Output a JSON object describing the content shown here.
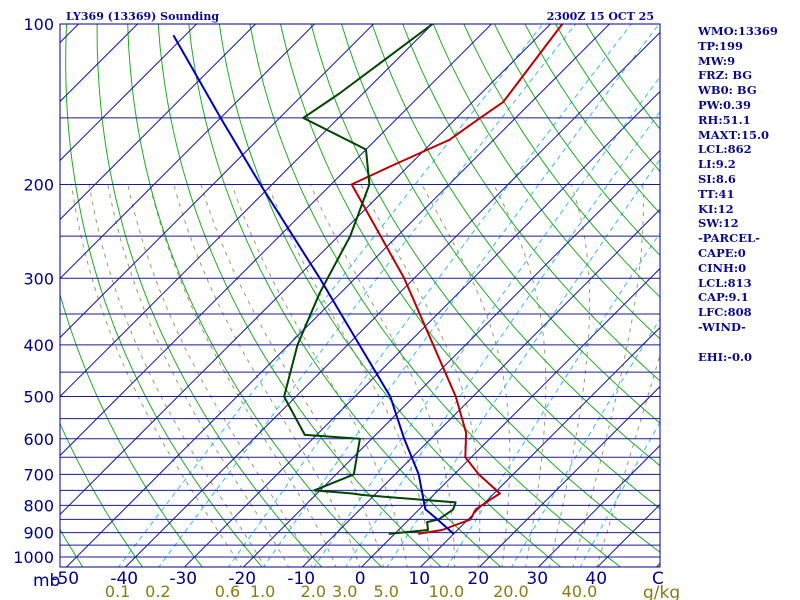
{
  "header": {
    "left": "LY369 (13369) Sounding",
    "right": "2300Z 15 OCT 25"
  },
  "indices": [
    "WMO:13369",
    "TP:199",
    "MW:9",
    "FRZ: BG",
    "WB0: BG",
    "PW:0.39",
    "RH:51.1",
    "MAXT:15.0",
    "LCL:862",
    "LI:9.2",
    "SI:8.6",
    "TT:41",
    "KI:12",
    "SW:12",
    "-PARCEL-",
    "CAPE:0",
    "CINH:0",
    "LCL:813",
    "CAP:9.1",
    "LFC:808",
    "-WIND-",
    "",
    "EHI:-0.0"
  ],
  "colors": {
    "frame": "#00008b",
    "isobar": "#1a1a9a",
    "isotherm": "#1a1a9a",
    "dry_adiabat": "#22aa22",
    "moist_adiabat": "#9a9a6a",
    "mixing_ratio": "#33bbee",
    "temperature": "#bb0000",
    "dewpoint": "#004400",
    "parcel": "#0000bb",
    "axis_label": "#00008b",
    "mixing_label": "#8a7a10"
  },
  "chart_data": {
    "type": "line",
    "title": "LY369 (13369) Sounding",
    "subtitle": "2300Z 15 OCT 25",
    "diagram": "skew-T log-p",
    "y_axis": {
      "unit": "mb",
      "scale": "log",
      "range": [
        1050,
        100
      ],
      "tick_labels": [
        "100",
        "200",
        "300",
        "400",
        "500",
        "600",
        "700",
        "800",
        "900",
        "1000"
      ],
      "tick_values": [
        100,
        200,
        300,
        400,
        500,
        600,
        700,
        800,
        900,
        1000
      ]
    },
    "x_axis": {
      "unit": "C",
      "range": [
        -50,
        50
      ],
      "tick_labels": [
        "-50",
        "-40",
        "-30",
        "-20",
        "-10",
        "0",
        "10",
        "20",
        "30",
        "40"
      ],
      "tick_values": [
        -50,
        -40,
        -30,
        -20,
        -10,
        0,
        10,
        20,
        30,
        40
      ]
    },
    "mixing_ratio_axis": {
      "unit": "g/kg",
      "labels": [
        "0.1",
        "0.2",
        "0.6",
        "1.0",
        "2.0",
        "3.0",
        "5.0",
        "10.0",
        "20.0",
        "40.0"
      ],
      "values": [
        0.1,
        0.2,
        0.6,
        1.0,
        2.0,
        3.0,
        5.0,
        10.0,
        20.0,
        40.0
      ]
    },
    "series": [
      {
        "key": "temperature",
        "points": [
          {
            "p": 905,
            "t": 4.0
          },
          {
            "p": 890,
            "t": 7.4
          },
          {
            "p": 850,
            "t": 10.4
          },
          {
            "p": 815,
            "t": 9.6
          },
          {
            "p": 780,
            "t": 10.4
          },
          {
            "p": 760,
            "t": 11.0
          },
          {
            "p": 700,
            "t": 4.2
          },
          {
            "p": 650,
            "t": -1.0
          },
          {
            "p": 585,
            "t": -5.0
          },
          {
            "p": 500,
            "t": -12.9
          },
          {
            "p": 400,
            "t": -25.5
          },
          {
            "p": 300,
            "t": -41.7
          },
          {
            "p": 200,
            "t": -66.5
          },
          {
            "p": 185,
            "t": -63.0
          },
          {
            "p": 165,
            "t": -57.5
          },
          {
            "p": 150,
            "t": -56.0
          },
          {
            "p": 140,
            "t": -54.8
          },
          {
            "p": 100,
            "t": -58.0
          }
        ]
      },
      {
        "key": "dewpoint",
        "points": [
          {
            "p": 905,
            "t": -1.0
          },
          {
            "p": 890,
            "t": 5.0
          },
          {
            "p": 860,
            "t": 3.5
          },
          {
            "p": 850,
            "t": 5.0
          },
          {
            "p": 815,
            "t": 5.8
          },
          {
            "p": 790,
            "t": 5.0
          },
          {
            "p": 765,
            "t": -12.0
          },
          {
            "p": 760,
            "t": -14.0
          },
          {
            "p": 750,
            "t": -21.0
          },
          {
            "p": 700,
            "t": -17.0
          },
          {
            "p": 600,
            "t": -22.0
          },
          {
            "p": 590,
            "t": -32.0
          },
          {
            "p": 500,
            "t": -42.0
          },
          {
            "p": 400,
            "t": -48.5
          },
          {
            "p": 320,
            "t": -53.5
          },
          {
            "p": 250,
            "t": -58.0
          },
          {
            "p": 200,
            "t": -63.5
          },
          {
            "p": 172,
            "t": -70.0
          },
          {
            "p": 150,
            "t": -86.0
          },
          {
            "p": 135,
            "t": -84.0
          },
          {
            "p": 100,
            "t": -80.0
          }
        ]
      },
      {
        "key": "parcel",
        "points": [
          {
            "p": 905,
            "t": 10.0
          },
          {
            "p": 850,
            "t": 4.8
          },
          {
            "p": 813,
            "t": 1.0
          },
          {
            "p": 700,
            "t": -6.0
          },
          {
            "p": 600,
            "t": -14.5
          },
          {
            "p": 500,
            "t": -24.0
          },
          {
            "p": 400,
            "t": -38.0
          },
          {
            "p": 300,
            "t": -56.0
          },
          {
            "p": 200,
            "t": -82.0
          },
          {
            "p": 150,
            "t": -100.0
          },
          {
            "p": 105,
            "t": -122.0
          }
        ]
      }
    ]
  }
}
